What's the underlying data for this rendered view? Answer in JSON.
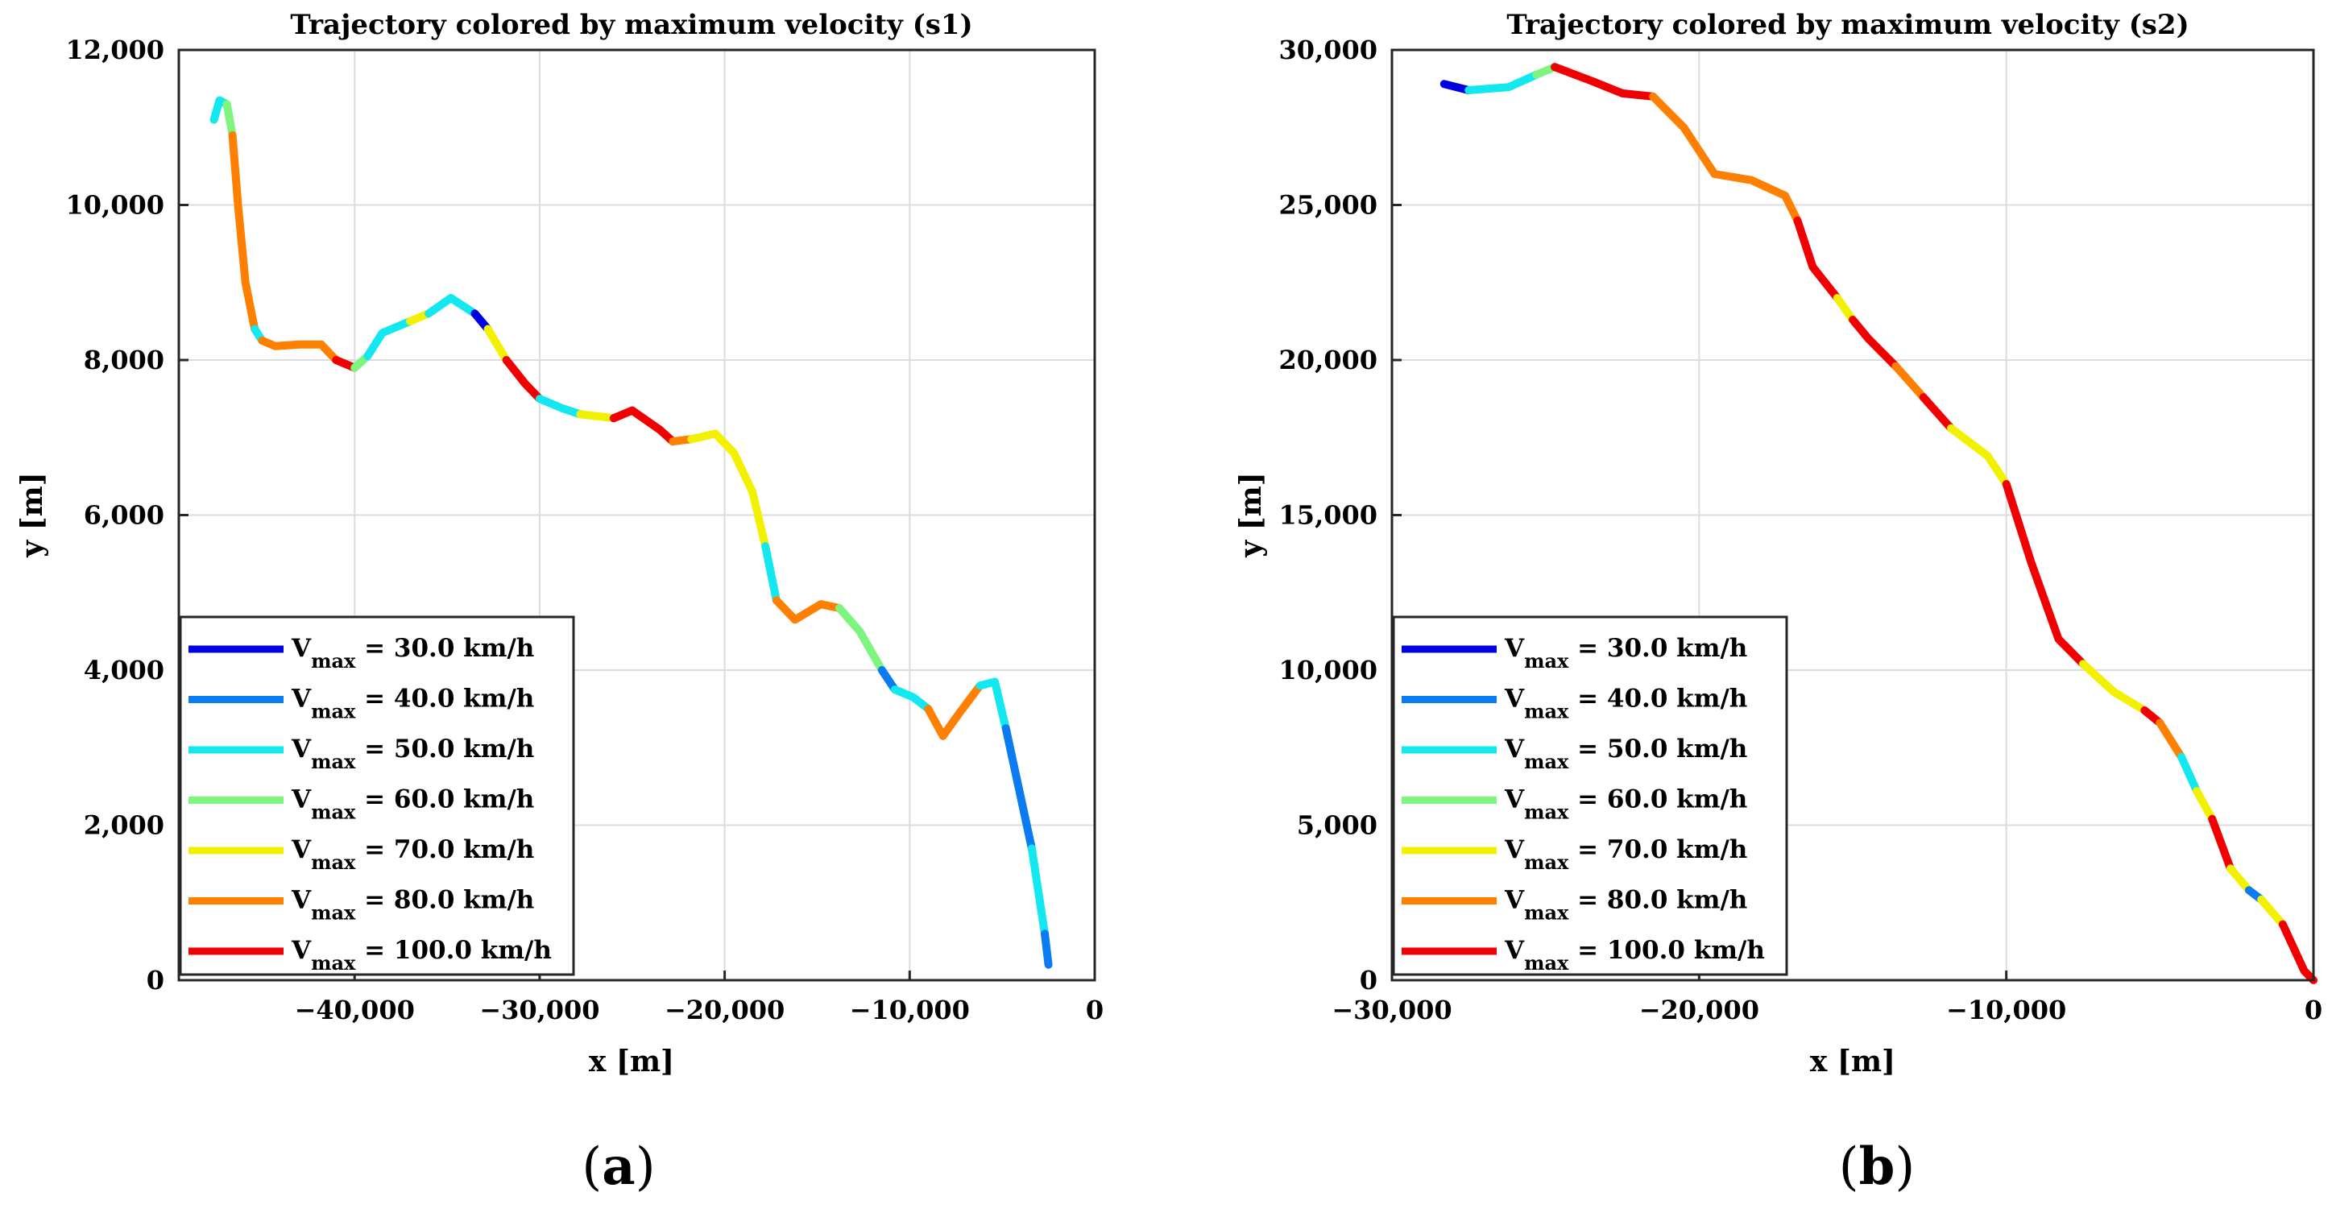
{
  "chart_data": [
    {
      "type": "line",
      "panel": "(a)",
      "panel_letter": "a",
      "title": "Trajectory colored by maximum velocity (s1)",
      "xlabel": "x [m]",
      "ylabel": "y [m]",
      "xlim": [
        -49500,
        0
      ],
      "ylim": [
        0,
        12000
      ],
      "xticks": [
        -40000,
        -30000,
        -20000,
        -10000,
        0
      ],
      "xtick_labels": [
        "−40,000",
        "−30,000",
        "−20,000",
        "−10,000",
        "0"
      ],
      "yticks": [
        0,
        2000,
        4000,
        6000,
        8000,
        10000,
        12000
      ],
      "ytick_labels": [
        "0",
        "2,000",
        "4,000",
        "6,000",
        "8,000",
        "10,000",
        "12,000"
      ],
      "grid": true,
      "legend_position": "lower-left",
      "segments": [
        {
          "v": 50,
          "points": [
            [
              -47600,
              11100
            ],
            [
              -47300,
              11350
            ],
            [
              -46900,
              11300
            ]
          ]
        },
        {
          "v": 60,
          "points": [
            [
              -46900,
              11300
            ],
            [
              -46600,
              10900
            ]
          ]
        },
        {
          "v": 80,
          "points": [
            [
              -46600,
              10900
            ],
            [
              -46300,
              10000
            ],
            [
              -45900,
              9000
            ],
            [
              -45400,
              8400
            ]
          ]
        },
        {
          "v": 50,
          "points": [
            [
              -45400,
              8400
            ],
            [
              -45000,
              8250
            ]
          ]
        },
        {
          "v": 80,
          "points": [
            [
              -45000,
              8250
            ],
            [
              -44300,
              8180
            ],
            [
              -43000,
              8200
            ],
            [
              -41800,
              8200
            ],
            [
              -41000,
              8000
            ]
          ]
        },
        {
          "v": 100,
          "points": [
            [
              -41000,
              8000
            ],
            [
              -40000,
              7900
            ]
          ]
        },
        {
          "v": 60,
          "points": [
            [
              -40000,
              7900
            ],
            [
              -39300,
              8050
            ]
          ]
        },
        {
          "v": 50,
          "points": [
            [
              -39300,
              8050
            ],
            [
              -38500,
              8350
            ],
            [
              -37000,
              8500
            ]
          ]
        },
        {
          "v": 70,
          "points": [
            [
              -37000,
              8500
            ],
            [
              -36000,
              8600
            ]
          ]
        },
        {
          "v": 50,
          "points": [
            [
              -36000,
              8600
            ],
            [
              -34800,
              8800
            ],
            [
              -33500,
              8600
            ]
          ]
        },
        {
          "v": 30,
          "points": [
            [
              -33500,
              8600
            ],
            [
              -32800,
              8400
            ]
          ]
        },
        {
          "v": 70,
          "points": [
            [
              -32800,
              8400
            ],
            [
              -31800,
              8000
            ]
          ]
        },
        {
          "v": 100,
          "points": [
            [
              -31800,
              8000
            ],
            [
              -30800,
              7700
            ],
            [
              -30000,
              7500
            ]
          ]
        },
        {
          "v": 50,
          "points": [
            [
              -30000,
              7500
            ],
            [
              -28800,
              7380
            ],
            [
              -27800,
              7300
            ]
          ]
        },
        {
          "v": 70,
          "points": [
            [
              -27800,
              7300
            ],
            [
              -26000,
              7250
            ]
          ]
        },
        {
          "v": 100,
          "points": [
            [
              -26000,
              7250
            ],
            [
              -25000,
              7350
            ],
            [
              -23500,
              7100
            ],
            [
              -22800,
              6950
            ]
          ]
        },
        {
          "v": 80,
          "points": [
            [
              -22800,
              6950
            ],
            [
              -21800,
              6980
            ]
          ]
        },
        {
          "v": 70,
          "points": [
            [
              -21800,
              6980
            ],
            [
              -20500,
              7050
            ],
            [
              -19500,
              6800
            ],
            [
              -18500,
              6300
            ],
            [
              -17800,
              5600
            ]
          ]
        },
        {
          "v": 50,
          "points": [
            [
              -17800,
              5600
            ],
            [
              -17200,
              4900
            ]
          ]
        },
        {
          "v": 80,
          "points": [
            [
              -17200,
              4900
            ],
            [
              -16200,
              4650
            ],
            [
              -14800,
              4850
            ],
            [
              -13800,
              4800
            ]
          ]
        },
        {
          "v": 60,
          "points": [
            [
              -13800,
              4800
            ],
            [
              -12700,
              4500
            ],
            [
              -11500,
              4000
            ]
          ]
        },
        {
          "v": 40,
          "points": [
            [
              -11500,
              4000
            ],
            [
              -10800,
              3750
            ]
          ]
        },
        {
          "v": 50,
          "points": [
            [
              -10800,
              3750
            ],
            [
              -9800,
              3650
            ],
            [
              -9000,
              3500
            ]
          ]
        },
        {
          "v": 80,
          "points": [
            [
              -9000,
              3500
            ],
            [
              -8200,
              3150
            ],
            [
              -7300,
              3450
            ],
            [
              -6200,
              3800
            ]
          ]
        },
        {
          "v": 50,
          "points": [
            [
              -6200,
              3800
            ],
            [
              -5400,
              3850
            ],
            [
              -4800,
              3250
            ]
          ]
        },
        {
          "v": 40,
          "points": [
            [
              -4800,
              3250
            ],
            [
              -3400,
              1700
            ]
          ]
        },
        {
          "v": 50,
          "points": [
            [
              -3400,
              1700
            ],
            [
              -2700,
              600
            ]
          ]
        },
        {
          "v": 40,
          "points": [
            [
              -2700,
              600
            ],
            [
              -2500,
              200
            ]
          ]
        }
      ]
    },
    {
      "type": "line",
      "panel": "(b)",
      "panel_letter": "b",
      "title": "Trajectory colored by maximum velocity (s2)",
      "xlabel": "x [m]",
      "ylabel": "y [m]",
      "xlim": [
        -30000,
        0
      ],
      "ylim": [
        0,
        30000
      ],
      "xticks": [
        -30000,
        -20000,
        -10000,
        0
      ],
      "xtick_labels": [
        "−30,000",
        "−20,000",
        "−10,000",
        "0"
      ],
      "yticks": [
        0,
        5000,
        10000,
        15000,
        20000,
        25000,
        30000
      ],
      "ytick_labels": [
        "0",
        "5,000",
        "10,000",
        "15,000",
        "20,000",
        "25,000",
        "30,000"
      ],
      "grid": true,
      "legend_position": "lower-left",
      "segments": [
        {
          "v": 30,
          "points": [
            [
              -28300,
              28900
            ],
            [
              -27500,
              28700
            ]
          ]
        },
        {
          "v": 50,
          "points": [
            [
              -27500,
              28700
            ],
            [
              -26200,
              28800
            ],
            [
              -25300,
              29200
            ]
          ]
        },
        {
          "v": 60,
          "points": [
            [
              -25300,
              29200
            ],
            [
              -24700,
              29450
            ]
          ]
        },
        {
          "v": 100,
          "points": [
            [
              -24700,
              29450
            ],
            [
              -23500,
              29000
            ],
            [
              -22500,
              28600
            ],
            [
              -21500,
              28500
            ]
          ]
        },
        {
          "v": 80,
          "points": [
            [
              -21500,
              28500
            ],
            [
              -20500,
              27500
            ],
            [
              -19500,
              26000
            ],
            [
              -18300,
              25800
            ],
            [
              -17200,
              25300
            ],
            [
              -16800,
              24500
            ]
          ]
        },
        {
          "v": 100,
          "points": [
            [
              -16800,
              24500
            ],
            [
              -16300,
              23000
            ],
            [
              -15500,
              22000
            ]
          ]
        },
        {
          "v": 70,
          "points": [
            [
              -15500,
              22000
            ],
            [
              -15000,
              21300
            ]
          ]
        },
        {
          "v": 100,
          "points": [
            [
              -15000,
              21300
            ],
            [
              -14500,
              20700
            ],
            [
              -13600,
              19800
            ]
          ]
        },
        {
          "v": 80,
          "points": [
            [
              -13600,
              19800
            ],
            [
              -12700,
              18800
            ]
          ]
        },
        {
          "v": 100,
          "points": [
            [
              -12700,
              18800
            ],
            [
              -11800,
              17800
            ]
          ]
        },
        {
          "v": 70,
          "points": [
            [
              -11800,
              17800
            ],
            [
              -10600,
              16900
            ],
            [
              -10000,
              16000
            ]
          ]
        },
        {
          "v": 100,
          "points": [
            [
              -10000,
              16000
            ],
            [
              -9200,
              13500
            ],
            [
              -8300,
              11000
            ],
            [
              -7500,
              10200
            ]
          ]
        },
        {
          "v": 70,
          "points": [
            [
              -7500,
              10200
            ],
            [
              -6500,
              9300
            ],
            [
              -5500,
              8700
            ]
          ]
        },
        {
          "v": 100,
          "points": [
            [
              -5500,
              8700
            ],
            [
              -5000,
              8300
            ]
          ]
        },
        {
          "v": 80,
          "points": [
            [
              -5000,
              8300
            ],
            [
              -4300,
              7200
            ]
          ]
        },
        {
          "v": 50,
          "points": [
            [
              -4300,
              7200
            ],
            [
              -3800,
              6100
            ]
          ]
        },
        {
          "v": 70,
          "points": [
            [
              -3800,
              6100
            ],
            [
              -3300,
              5200
            ]
          ]
        },
        {
          "v": 100,
          "points": [
            [
              -3300,
              5200
            ],
            [
              -2700,
              3600
            ]
          ]
        },
        {
          "v": 70,
          "points": [
            [
              -2700,
              3600
            ],
            [
              -2100,
              2900
            ]
          ]
        },
        {
          "v": 40,
          "points": [
            [
              -2100,
              2900
            ],
            [
              -1700,
              2600
            ]
          ]
        },
        {
          "v": 70,
          "points": [
            [
              -1700,
              2600
            ],
            [
              -1000,
              1800
            ]
          ]
        },
        {
          "v": 100,
          "points": [
            [
              -1000,
              1800
            ],
            [
              -300,
              300
            ],
            [
              0,
              0
            ]
          ]
        }
      ]
    }
  ],
  "legend": [
    {
      "v": 30,
      "prefix": "V",
      "sub": "max",
      "label": " = 30.0 km/h",
      "color": "#0000e0"
    },
    {
      "v": 40,
      "prefix": "V",
      "sub": "max",
      "label": " = 40.0 km/h",
      "color": "#0a7bf0"
    },
    {
      "v": 50,
      "prefix": "V",
      "sub": "max",
      "label": " = 50.0 km/h",
      "color": "#13e8f0"
    },
    {
      "v": 60,
      "prefix": "V",
      "sub": "max",
      "label": " = 60.0 km/h",
      "color": "#7ef57e"
    },
    {
      "v": 70,
      "prefix": "V",
      "sub": "max",
      "label": " = 70.0 km/h",
      "color": "#f2f200"
    },
    {
      "v": 80,
      "prefix": "V",
      "sub": "max",
      "label": " = 80.0 km/h",
      "color": "#ff8000"
    },
    {
      "v": 100,
      "prefix": "V",
      "sub": "max",
      "label": " = 100.0 km/h",
      "color": "#f00000"
    }
  ]
}
